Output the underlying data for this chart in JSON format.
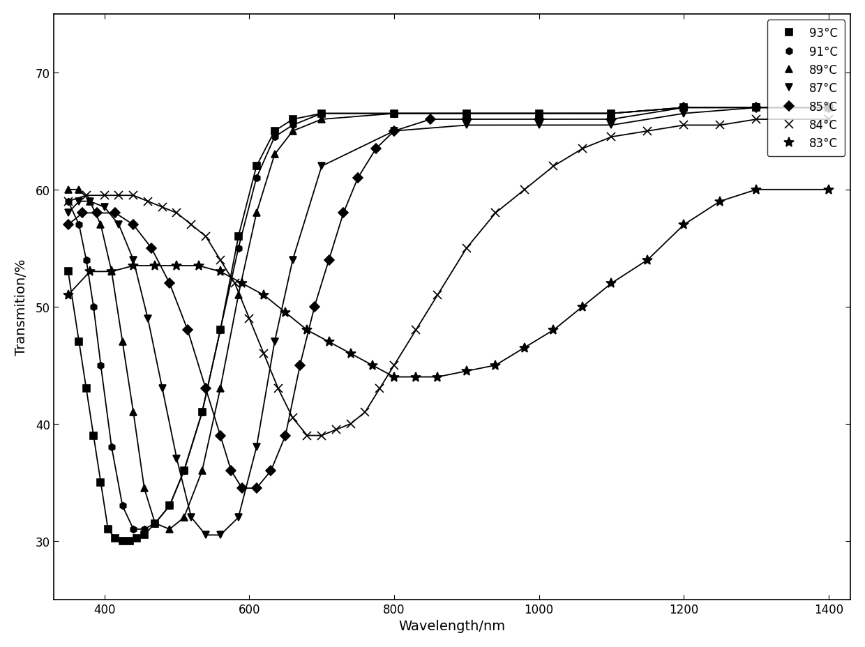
{
  "title": "",
  "xlabel": "Wavelength/nm",
  "ylabel": "Transmition/%",
  "xlim": [
    330,
    1430
  ],
  "ylim": [
    25,
    75
  ],
  "xticks": [
    400,
    600,
    800,
    1000,
    1200,
    1400
  ],
  "yticks": [
    30,
    40,
    50,
    60,
    70
  ],
  "background_color": "#ffffff",
  "series": [
    {
      "label": "93°C",
      "marker": "s",
      "markersize": 7,
      "x": [
        350,
        365,
        375,
        385,
        395,
        405,
        415,
        425,
        435,
        445,
        455,
        470,
        490,
        510,
        535,
        560,
        585,
        610,
        635,
        660,
        700,
        800,
        900,
        1000,
        1100,
        1200,
        1300,
        1400
      ],
      "y": [
        53,
        47,
        43,
        39,
        35,
        31,
        30.2,
        30.0,
        30.0,
        30.2,
        30.5,
        31.5,
        33,
        36,
        41,
        48,
        56,
        62,
        65,
        66,
        66.5,
        66.5,
        66.5,
        66.5,
        66.5,
        67,
        67,
        67
      ]
    },
    {
      "label": "91°C",
      "marker": "h",
      "markersize": 7,
      "x": [
        350,
        365,
        375,
        385,
        395,
        410,
        425,
        440,
        455,
        470,
        490,
        510,
        535,
        560,
        585,
        610,
        635,
        660,
        700,
        800,
        900,
        1000,
        1100,
        1200,
        1300,
        1400
      ],
      "y": [
        59,
        57,
        54,
        50,
        45,
        38,
        33,
        31,
        31,
        31.5,
        33,
        36,
        41,
        48,
        55,
        61,
        64.5,
        65.5,
        66.5,
        66.5,
        66.5,
        66.5,
        66.5,
        67,
        67,
        67
      ]
    },
    {
      "label": "89°C",
      "marker": "^",
      "markersize": 7,
      "x": [
        350,
        365,
        380,
        395,
        410,
        425,
        440,
        455,
        470,
        490,
        510,
        535,
        560,
        585,
        610,
        635,
        660,
        700,
        800,
        900,
        1000,
        1100,
        1200,
        1300,
        1400
      ],
      "y": [
        60,
        60,
        59,
        57,
        53,
        47,
        41,
        34.5,
        31.5,
        31,
        32,
        36,
        43,
        51,
        58,
        63,
        65,
        66,
        66.5,
        66.5,
        66.5,
        66.5,
        67,
        67,
        67
      ]
    },
    {
      "label": "87°C",
      "marker": "v",
      "markersize": 7,
      "x": [
        350,
        365,
        380,
        400,
        420,
        440,
        460,
        480,
        500,
        520,
        540,
        560,
        585,
        610,
        635,
        660,
        700,
        800,
        900,
        1000,
        1100,
        1200,
        1300,
        1400
      ],
      "y": [
        58,
        59,
        59,
        58.5,
        57,
        54,
        49,
        43,
        37,
        32,
        30.5,
        30.5,
        32,
        38,
        47,
        54,
        62,
        65,
        65.5,
        65.5,
        65.5,
        66.5,
        67,
        67
      ]
    },
    {
      "label": "85°C",
      "marker": "D",
      "markersize": 7,
      "x": [
        350,
        370,
        390,
        415,
        440,
        465,
        490,
        515,
        540,
        560,
        575,
        590,
        610,
        630,
        650,
        670,
        690,
        710,
        730,
        750,
        775,
        800,
        850,
        900,
        1000,
        1100,
        1200,
        1300,
        1400
      ],
      "y": [
        57,
        58,
        58,
        58,
        57,
        55,
        52,
        48,
        43,
        39,
        36,
        34.5,
        34.5,
        36,
        39,
        45,
        50,
        54,
        58,
        61,
        63.5,
        65,
        66,
        66,
        66,
        66,
        67,
        67,
        67
      ]
    },
    {
      "label": "84°C",
      "marker": "x",
      "markersize": 9,
      "x": [
        350,
        375,
        400,
        420,
        440,
        460,
        480,
        500,
        520,
        540,
        560,
        580,
        600,
        620,
        640,
        660,
        680,
        700,
        720,
        740,
        760,
        780,
        800,
        830,
        860,
        900,
        940,
        980,
        1020,
        1060,
        1100,
        1150,
        1200,
        1250,
        1300,
        1400
      ],
      "y": [
        59,
        59.5,
        59.5,
        59.5,
        59.5,
        59,
        58.5,
        58,
        57,
        56,
        54,
        52,
        49,
        46,
        43,
        40.5,
        39,
        39,
        39.5,
        40,
        41,
        43,
        45,
        48,
        51,
        55,
        58,
        60,
        62,
        63.5,
        64.5,
        65,
        65.5,
        65.5,
        66,
        66
      ]
    },
    {
      "label": "83°C",
      "marker": "*",
      "markersize": 10,
      "x": [
        350,
        380,
        410,
        440,
        470,
        500,
        530,
        560,
        590,
        620,
        650,
        680,
        710,
        740,
        770,
        800,
        830,
        860,
        900,
        940,
        980,
        1020,
        1060,
        1100,
        1150,
        1200,
        1250,
        1300,
        1400
      ],
      "y": [
        51,
        53,
        53,
        53.5,
        53.5,
        53.5,
        53.5,
        53,
        52,
        51,
        49.5,
        48,
        47,
        46,
        45,
        44,
        44,
        44,
        44.5,
        45,
        46.5,
        48,
        50,
        52,
        54,
        57,
        59,
        60,
        60
      ]
    }
  ]
}
